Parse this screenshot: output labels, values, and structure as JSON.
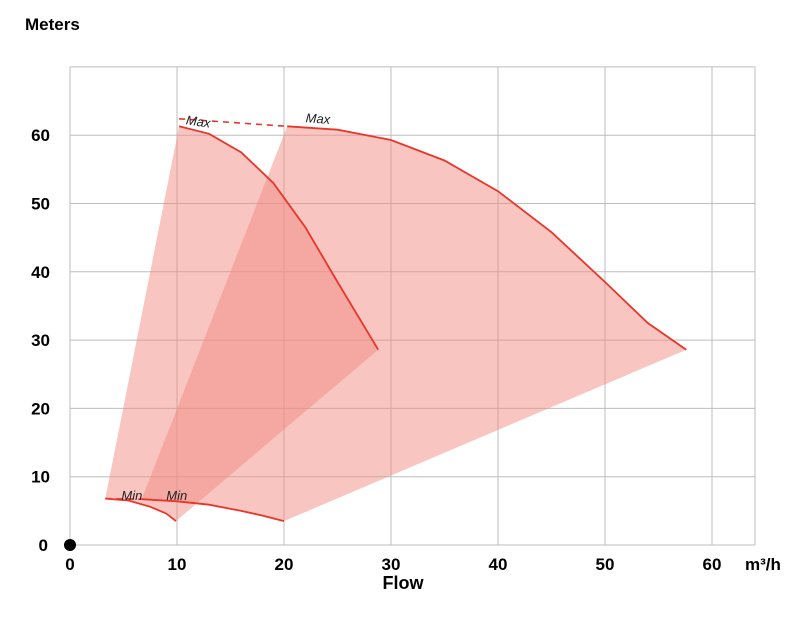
{
  "chart_data": {
    "type": "area",
    "ylabel": "Meters",
    "xlabel": "Flow",
    "x_unit": "m³/h",
    "xlim": [
      0,
      64
    ],
    "ylim": [
      0,
      70
    ],
    "x_ticks": [
      0,
      10,
      20,
      30,
      40,
      50,
      60
    ],
    "y_ticks": [
      0,
      10,
      20,
      30,
      40,
      50,
      60
    ],
    "grid": true,
    "series": [
      {
        "curve_label_top": "Max",
        "curve_label_bottom": "Min",
        "max_curve": [
          [
            10.2,
            61.3
          ],
          [
            13,
            60.2
          ],
          [
            16,
            57.5
          ],
          [
            19,
            53.0
          ],
          [
            22,
            46.5
          ],
          [
            25,
            38.5
          ],
          [
            28.8,
            28.6
          ]
        ],
        "min_curve": [
          [
            3.3,
            6.8
          ],
          [
            5.5,
            6.5
          ],
          [
            7.5,
            5.6
          ],
          [
            9,
            4.6
          ],
          [
            9.9,
            3.5
          ]
        ],
        "fan_polygon": [
          [
            10.2,
            61.3
          ],
          [
            13,
            60.2
          ],
          [
            16,
            57.5
          ],
          [
            19,
            53.0
          ],
          [
            22,
            46.5
          ],
          [
            25,
            38.5
          ],
          [
            28.8,
            28.6
          ],
          [
            9.9,
            3.5
          ],
          [
            9,
            4.6
          ],
          [
            7.5,
            5.6
          ],
          [
            5.5,
            6.5
          ],
          [
            3.3,
            6.8
          ]
        ]
      },
      {
        "curve_label_top": "Max",
        "curve_label_bottom": "Min",
        "max_curve": [
          [
            20.3,
            61.3
          ],
          [
            25,
            60.8
          ],
          [
            30,
            59.3
          ],
          [
            35,
            56.3
          ],
          [
            40,
            51.8
          ],
          [
            45,
            45.8
          ],
          [
            50,
            38.5
          ],
          [
            54,
            32.5
          ],
          [
            57.6,
            28.6
          ]
        ],
        "min_curve": [
          [
            6.7,
            6.7
          ],
          [
            10,
            6.4
          ],
          [
            13,
            5.9
          ],
          [
            16,
            5.0
          ],
          [
            18,
            4.3
          ],
          [
            20,
            3.5
          ]
        ],
        "fan_polygon": [
          [
            20.3,
            61.3
          ],
          [
            25,
            60.8
          ],
          [
            30,
            59.3
          ],
          [
            35,
            56.3
          ],
          [
            40,
            51.8
          ],
          [
            45,
            45.8
          ],
          [
            50,
            38.5
          ],
          [
            54,
            32.5
          ],
          [
            57.6,
            28.6
          ],
          [
            20,
            3.5
          ],
          [
            18,
            4.3
          ],
          [
            16,
            5.0
          ],
          [
            13,
            5.9
          ],
          [
            10,
            6.4
          ],
          [
            6.7,
            6.7
          ]
        ]
      }
    ],
    "dashed_connectors": [
      [
        [
          10.2,
          62.4
        ],
        [
          20.3,
          61.3
        ]
      ],
      [
        [
          3.3,
          6.8
        ],
        [
          6.7,
          6.7
        ]
      ]
    ]
  }
}
